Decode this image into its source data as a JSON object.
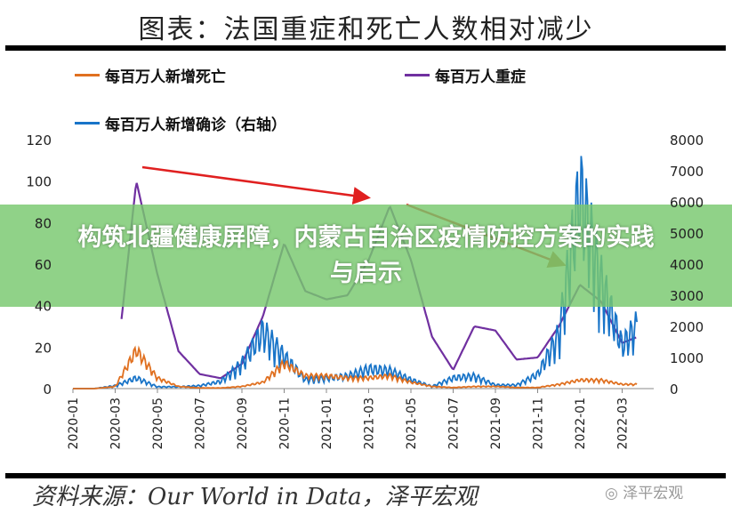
{
  "title": "图表：法国重症和死亡人数相对减少",
  "banner": "构筑北疆健康屏障，内蒙古自治区疫情防控方案的实践与启示",
  "source": "资料来源：Our World in Data，泽平宏观",
  "watermark": "泽平宏观",
  "chart_data": {
    "type": "line",
    "x": [
      "2020-01",
      "2020-02",
      "2020-03",
      "2020-04",
      "2020-05",
      "2020-06",
      "2020-07",
      "2020-08",
      "2020-09",
      "2020-10",
      "2020-11",
      "2020-12",
      "2021-01",
      "2021-02",
      "2021-03",
      "2021-04",
      "2021-05",
      "2021-06",
      "2021-07",
      "2021-08",
      "2021-09",
      "2021-10",
      "2021-11",
      "2021-12",
      "2022-01",
      "2022-02",
      "2022-03",
      "2022-04"
    ],
    "xticks": [
      "2020-01",
      "2020-03",
      "2020-05",
      "2020-07",
      "2020-09",
      "2020-11",
      "2021-01",
      "2021-03",
      "2021-05",
      "2021-07",
      "2021-09",
      "2021-11",
      "2022-01",
      "2022-03"
    ],
    "ylim": [
      0,
      120
    ],
    "yticks": [
      "0",
      "20",
      "40",
      "60",
      "80",
      "100",
      "120"
    ],
    "y2lim": [
      0,
      8000
    ],
    "y2ticks": [
      "0",
      "1000",
      "2000",
      "3000",
      "4000",
      "5000",
      "6000",
      "7000",
      "8000"
    ],
    "series": [
      {
        "name": "每百万人新增死亡",
        "color": "#e07020",
        "axis": "left",
        "values": [
          0,
          0,
          1,
          18,
          5,
          1,
          0.3,
          0.3,
          1,
          3,
          12,
          6,
          6,
          5,
          5,
          6,
          3,
          1,
          0.5,
          1,
          1,
          0.5,
          0.5,
          2,
          4,
          4,
          2,
          2
        ]
      },
      {
        "name": "每百万人重症",
        "color": "#7030a0",
        "axis": "left",
        "values": [
          0,
          0,
          5,
          100,
          55,
          18,
          7,
          5,
          12,
          35,
          70,
          47,
          43,
          45,
          62,
          88,
          62,
          25,
          9,
          30,
          28,
          14,
          15,
          30,
          50,
          42,
          22,
          26
        ]
      },
      {
        "name": "每百万人新增确诊（右轴）",
        "color": "#1874c8",
        "axis": "right",
        "values": [
          0,
          0,
          80,
          300,
          50,
          50,
          80,
          200,
          700,
          1600,
          900,
          250,
          300,
          350,
          550,
          500,
          250,
          60,
          300,
          350,
          100,
          100,
          400,
          1500,
          5500,
          3000,
          1200,
          2000
        ]
      }
    ],
    "annotations": [
      "arrow",
      "arrow"
    ]
  }
}
